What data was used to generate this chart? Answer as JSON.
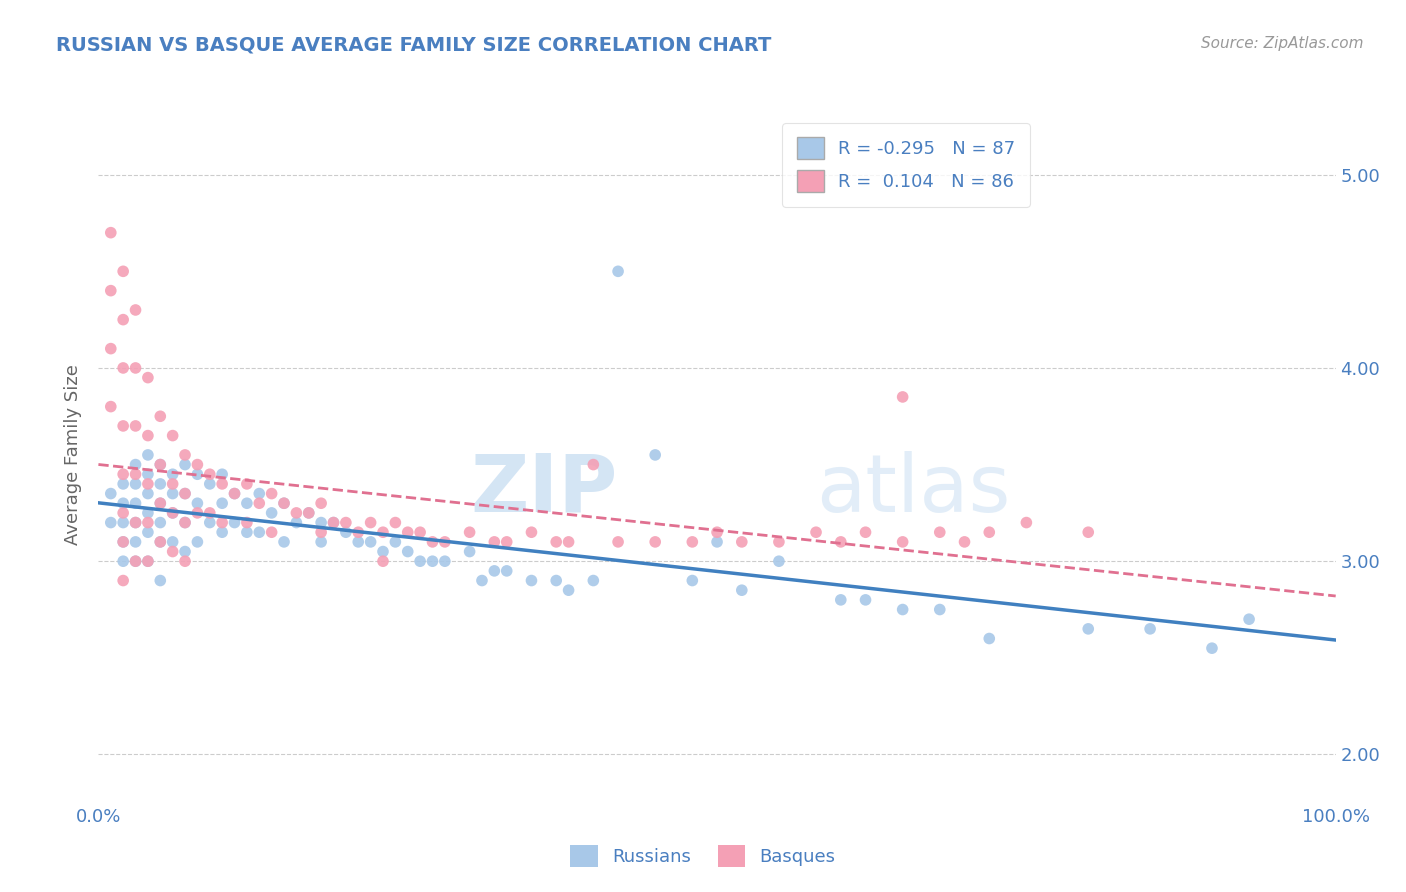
{
  "title": "RUSSIAN VS BASQUE AVERAGE FAMILY SIZE CORRELATION CHART",
  "source_text": "Source: ZipAtlas.com",
  "ylabel": "Average Family Size",
  "xlim": [
    0.0,
    1.0
  ],
  "ylim": [
    1.75,
    5.35
  ],
  "yticks": [
    2.0,
    3.0,
    4.0,
    5.0
  ],
  "right_ytick_labels": [
    "2.00",
    "3.00",
    "4.00",
    "5.00"
  ],
  "russian_color": "#a8c8e8",
  "basque_color": "#f4a0b5",
  "russian_line_color": "#4080c0",
  "basque_line_color": "#e07090",
  "R_russian": -0.295,
  "N_russian": 87,
  "R_basque": 0.104,
  "N_basque": 86,
  "watermark_1": "ZIP",
  "watermark_2": "atlas",
  "background_color": "#ffffff",
  "grid_color": "#cccccc",
  "title_color": "#4a7fc0",
  "axis_label_color": "#4a7fc0",
  "tick_label_color": "#4a7fc0",
  "russian_scatter_x": [
    0.01,
    0.01,
    0.02,
    0.02,
    0.02,
    0.02,
    0.02,
    0.03,
    0.03,
    0.03,
    0.03,
    0.03,
    0.03,
    0.04,
    0.04,
    0.04,
    0.04,
    0.04,
    0.04,
    0.05,
    0.05,
    0.05,
    0.05,
    0.05,
    0.05,
    0.06,
    0.06,
    0.06,
    0.06,
    0.07,
    0.07,
    0.07,
    0.07,
    0.08,
    0.08,
    0.08,
    0.09,
    0.09,
    0.1,
    0.1,
    0.1,
    0.11,
    0.11,
    0.12,
    0.12,
    0.13,
    0.13,
    0.14,
    0.15,
    0.15,
    0.16,
    0.17,
    0.18,
    0.18,
    0.19,
    0.2,
    0.21,
    0.22,
    0.23,
    0.24,
    0.25,
    0.26,
    0.27,
    0.28,
    0.3,
    0.31,
    0.32,
    0.33,
    0.35,
    0.37,
    0.38,
    0.4,
    0.42,
    0.45,
    0.48,
    0.5,
    0.52,
    0.55,
    0.6,
    0.62,
    0.65,
    0.68,
    0.72,
    0.8,
    0.85,
    0.9,
    0.93
  ],
  "russian_scatter_y": [
    3.35,
    3.2,
    3.4,
    3.3,
    3.2,
    3.1,
    3.0,
    3.5,
    3.4,
    3.3,
    3.2,
    3.1,
    3.0,
    3.55,
    3.45,
    3.35,
    3.25,
    3.15,
    3.0,
    3.5,
    3.4,
    3.3,
    3.2,
    3.1,
    2.9,
    3.45,
    3.35,
    3.25,
    3.1,
    3.5,
    3.35,
    3.2,
    3.05,
    3.45,
    3.3,
    3.1,
    3.4,
    3.2,
    3.45,
    3.3,
    3.15,
    3.35,
    3.2,
    3.3,
    3.15,
    3.35,
    3.15,
    3.25,
    3.3,
    3.1,
    3.2,
    3.25,
    3.2,
    3.1,
    3.2,
    3.15,
    3.1,
    3.1,
    3.05,
    3.1,
    3.05,
    3.0,
    3.0,
    3.0,
    3.05,
    2.9,
    2.95,
    2.95,
    2.9,
    2.9,
    2.85,
    2.9,
    4.5,
    3.55,
    2.9,
    3.1,
    2.85,
    3.0,
    2.8,
    2.8,
    2.75,
    2.75,
    2.6,
    2.65,
    2.65,
    2.55,
    2.7
  ],
  "basque_scatter_x": [
    0.01,
    0.01,
    0.01,
    0.01,
    0.02,
    0.02,
    0.02,
    0.02,
    0.02,
    0.02,
    0.02,
    0.02,
    0.03,
    0.03,
    0.03,
    0.03,
    0.03,
    0.03,
    0.04,
    0.04,
    0.04,
    0.04,
    0.04,
    0.05,
    0.05,
    0.05,
    0.05,
    0.06,
    0.06,
    0.06,
    0.06,
    0.07,
    0.07,
    0.07,
    0.07,
    0.08,
    0.08,
    0.09,
    0.09,
    0.1,
    0.1,
    0.11,
    0.12,
    0.12,
    0.13,
    0.14,
    0.14,
    0.15,
    0.16,
    0.17,
    0.18,
    0.18,
    0.19,
    0.2,
    0.21,
    0.22,
    0.23,
    0.23,
    0.24,
    0.25,
    0.26,
    0.27,
    0.28,
    0.3,
    0.32,
    0.33,
    0.35,
    0.37,
    0.38,
    0.4,
    0.42,
    0.45,
    0.48,
    0.5,
    0.52,
    0.55,
    0.58,
    0.6,
    0.62,
    0.65,
    0.68,
    0.7,
    0.72,
    0.75,
    0.8,
    0.65
  ],
  "basque_scatter_y": [
    4.7,
    4.4,
    4.1,
    3.8,
    4.5,
    4.25,
    4.0,
    3.7,
    3.45,
    3.25,
    3.1,
    2.9,
    4.3,
    4.0,
    3.7,
    3.45,
    3.2,
    3.0,
    3.95,
    3.65,
    3.4,
    3.2,
    3.0,
    3.75,
    3.5,
    3.3,
    3.1,
    3.65,
    3.4,
    3.25,
    3.05,
    3.55,
    3.35,
    3.2,
    3.0,
    3.5,
    3.25,
    3.45,
    3.25,
    3.4,
    3.2,
    3.35,
    3.4,
    3.2,
    3.3,
    3.35,
    3.15,
    3.3,
    3.25,
    3.25,
    3.3,
    3.15,
    3.2,
    3.2,
    3.15,
    3.2,
    3.15,
    3.0,
    3.2,
    3.15,
    3.15,
    3.1,
    3.1,
    3.15,
    3.1,
    3.1,
    3.15,
    3.1,
    3.1,
    3.5,
    3.1,
    3.1,
    3.1,
    3.15,
    3.1,
    3.1,
    3.15,
    3.1,
    3.15,
    3.1,
    3.15,
    3.1,
    3.15,
    3.2,
    3.15,
    3.85
  ]
}
